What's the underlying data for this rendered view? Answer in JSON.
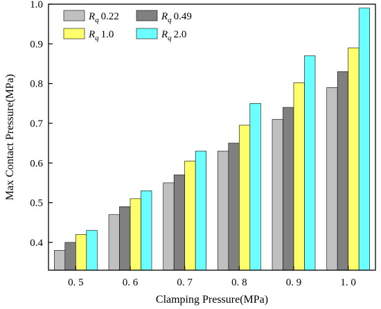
{
  "chart_data": {
    "type": "bar",
    "title": "",
    "xlabel": "Clamping Pressure(MPa)",
    "ylabel": "Max Contact Pressure(MPa)",
    "categories": [
      "0. 5",
      "0. 6",
      "0. 7",
      "0. 8",
      "0. 9",
      "1. 0"
    ],
    "ylim": [
      0.33,
      1.0
    ],
    "yticks": [
      0.4,
      0.5,
      0.6,
      0.7,
      0.8,
      0.9,
      1.0
    ],
    "ytick_labels": [
      "0.4",
      "0.5",
      "0.6",
      "0.7",
      "0.8",
      "0.9",
      "1.0"
    ],
    "grid": false,
    "legend_position": "top-left",
    "series": [
      {
        "name": "0.22",
        "symbol": "R",
        "subscript": "q",
        "color": "#c0c0c0",
        "values": [
          0.38,
          0.47,
          0.55,
          0.63,
          0.71,
          0.79
        ]
      },
      {
        "name": "0.49",
        "symbol": "R",
        "subscript": "q",
        "color": "#808080",
        "values": [
          0.4,
          0.49,
          0.57,
          0.65,
          0.74,
          0.83
        ]
      },
      {
        "name": "1.0",
        "symbol": "R",
        "subscript": "q",
        "color": "#ffff6b",
        "values": [
          0.42,
          0.51,
          0.605,
          0.695,
          0.802,
          0.89
        ]
      },
      {
        "name": "2.0",
        "symbol": "R",
        "subscript": "q",
        "color": "#6bffff",
        "values": [
          0.43,
          0.53,
          0.63,
          0.75,
          0.87,
          0.99
        ]
      }
    ]
  }
}
